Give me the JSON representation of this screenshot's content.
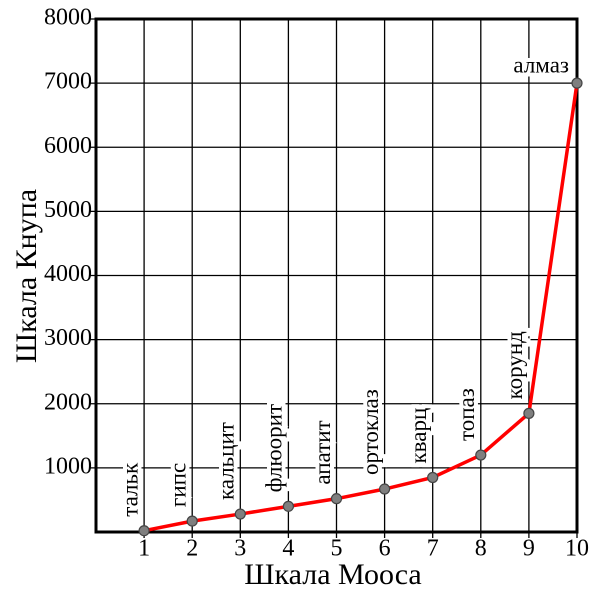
{
  "chart_data": {
    "type": "line",
    "x_label": "Шкала Мооса",
    "y_label": "Шкала Кнупа",
    "x": [
      1,
      2,
      3,
      4,
      5,
      6,
      7,
      8,
      9,
      10
    ],
    "point_labels": [
      "тальк",
      "гипс",
      "кальцит",
      "флюорит",
      "апатит",
      "ортоклаз",
      "кварц",
      "топаз",
      "корунд",
      "алмаз"
    ],
    "values": [
      20,
      170,
      280,
      400,
      520,
      670,
      850,
      1200,
      1850,
      7000
    ],
    "color": "#ff0000",
    "marker_color": "#7f7f7f",
    "xlim": [
      0,
      10
    ],
    "xticks": [
      1,
      2,
      3,
      4,
      5,
      6,
      7,
      8,
      9,
      10
    ],
    "ylim": [
      0,
      8000
    ],
    "yticks": [
      1000,
      2000,
      3000,
      4000,
      5000,
      6000,
      7000,
      8000
    ],
    "grid": true
  }
}
